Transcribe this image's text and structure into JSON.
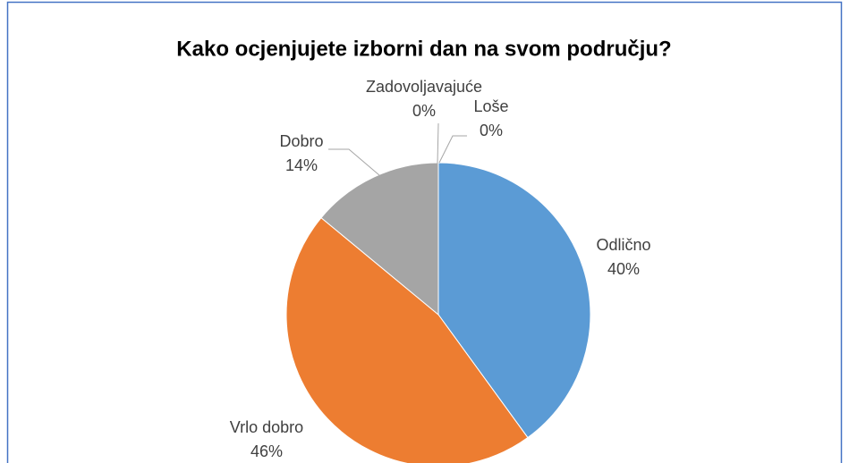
{
  "chart_data": {
    "type": "pie",
    "title": "Kako ocjenjujete izborni dan na svom području?",
    "categories": [
      "Odlično",
      "Vrlo dobro",
      "Dobro",
      "Zadovoljavajuće",
      "Loše"
    ],
    "values": [
      40,
      46,
      14,
      0,
      0
    ],
    "value_labels": [
      "40%",
      "46%",
      "14%",
      "0%",
      "0%"
    ],
    "colors": [
      "#5b9bd5",
      "#ed7d31",
      "#a5a5a5",
      "#ffc000",
      "#4472c4"
    ]
  }
}
